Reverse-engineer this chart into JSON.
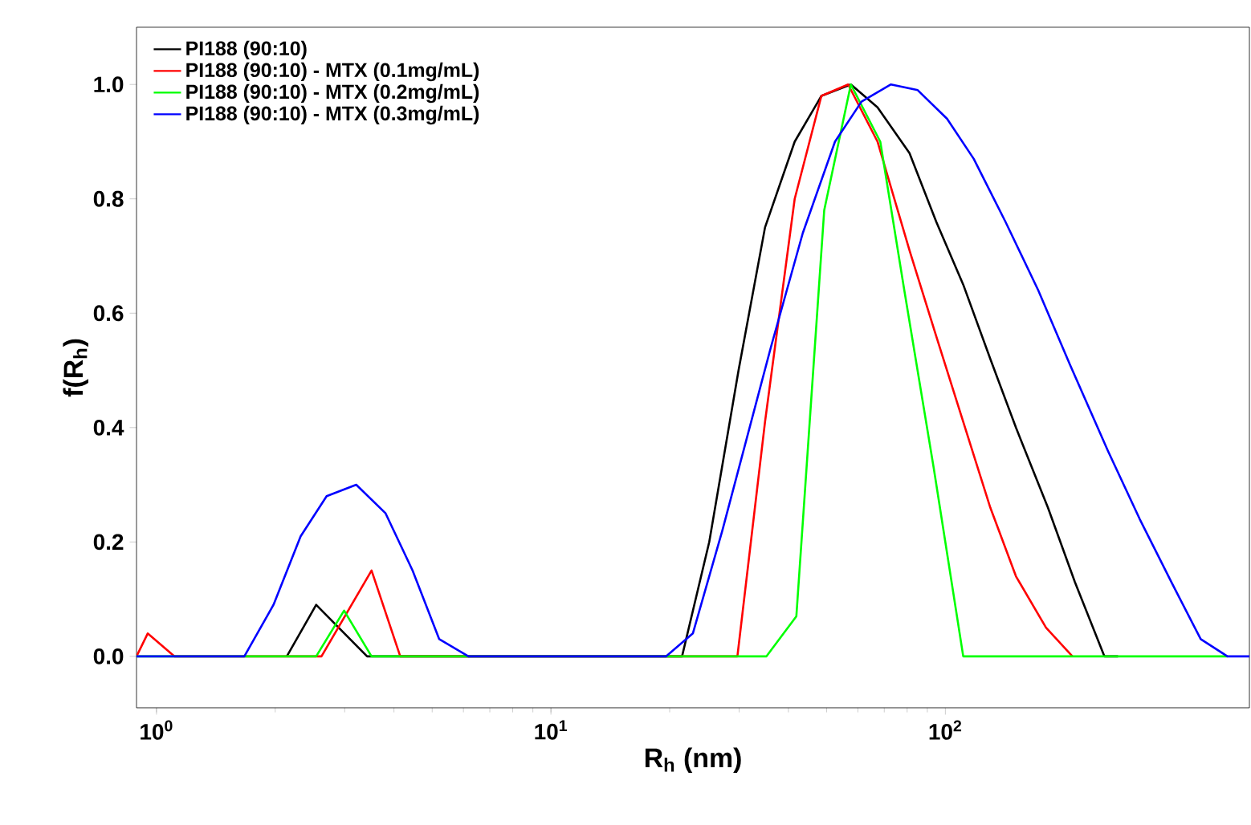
{
  "chart_data": {
    "type": "line",
    "xlabel": "R$_{h}$ (nm)",
    "ylabel": "f(R$_{h}$)",
    "log": "x",
    "legend": "top left",
    "grid": false,
    "marker": "none",
    "line_style": "solid",
    "xlim": [
      0.89,
      590
    ],
    "ylim": [
      -0.09,
      1.1
    ],
    "xticks": [
      {
        "value": 1,
        "label": "10$^{0}$"
      },
      {
        "value": 10,
        "label": "10$^{1}$"
      },
      {
        "value": 100,
        "label": "10$^{2}$"
      }
    ],
    "yticks": [
      {
        "value": 0,
        "label": "0.0"
      },
      {
        "value": 0.2,
        "label": "0.2"
      },
      {
        "value": 0.4,
        "label": "0.4"
      },
      {
        "value": 0.6,
        "label": "0.6"
      },
      {
        "value": 0.8,
        "label": "0.8"
      },
      {
        "value": 1.0,
        "label": "1.0"
      }
    ],
    "series": [
      {
        "name": "PI188 (90:10)",
        "color": "#000000",
        "x": [
          2.14,
          2.54,
          3.42,
          21.5,
          25.2,
          29.9,
          34.9,
          41.5,
          48.5,
          57.6,
          67.3,
          81.1,
          94.8,
          111,
          130,
          151,
          182,
          213,
          253,
          274
        ],
        "values": [
          0,
          0.09,
          0,
          0,
          0.2,
          0.5,
          0.75,
          0.9,
          0.98,
          1.0,
          0.96,
          0.88,
          0.76,
          0.65,
          0.52,
          0.4,
          0.26,
          0.13,
          0,
          0
        ]
      },
      {
        "name": "PI188 (90:10) - MTX (0.1mg/mL)",
        "color": "#ff0000",
        "x": [
          0.89,
          0.95,
          1.11,
          1.22,
          2.62,
          3.51,
          4.15,
          29.7,
          34.9,
          41.5,
          48.5,
          56.7,
          67.3,
          81.1,
          94.8,
          111,
          130,
          151,
          180,
          210
        ],
        "values": [
          0,
          0.04,
          0,
          0,
          0,
          0.15,
          0,
          0,
          0.41,
          0.8,
          0.98,
          1.0,
          0.9,
          0.71,
          0.56,
          0.41,
          0.26,
          0.14,
          0.05,
          0
        ]
      },
      {
        "name": "PI188 (90:10) - MTX (0.2mg/mL)",
        "color": "#00ff00",
        "x": [
          0.89,
          2.54,
          2.99,
          3.51,
          35.2,
          41.9,
          49.3,
          57.6,
          68.4,
          78.7,
          93.4,
          111,
          519
        ],
        "values": [
          0,
          0,
          0.08,
          0,
          0,
          0.07,
          0.78,
          1.0,
          0.9,
          0.64,
          0.33,
          0,
          0
        ]
      },
      {
        "name": "PI188 (90:10) - MTX (0.3mg/mL)",
        "color": "#0000ff",
        "x": [
          0.89,
          1.67,
          1.98,
          2.32,
          2.7,
          3.21,
          3.81,
          4.46,
          5.21,
          6.18,
          19.6,
          22.9,
          27.2,
          36.1,
          43.5,
          52.5,
          61.3,
          72.8,
          85.1,
          101,
          118,
          142,
          172,
          207,
          258,
          311,
          374,
          444,
          519,
          590
        ],
        "values": [
          0,
          0,
          0.09,
          0.21,
          0.28,
          0.3,
          0.25,
          0.15,
          0.03,
          0,
          0,
          0.04,
          0.22,
          0.54,
          0.74,
          0.9,
          0.97,
          1.0,
          0.99,
          0.94,
          0.87,
          0.76,
          0.64,
          0.51,
          0.36,
          0.24,
          0.13,
          0.03,
          0,
          0
        ]
      }
    ]
  }
}
